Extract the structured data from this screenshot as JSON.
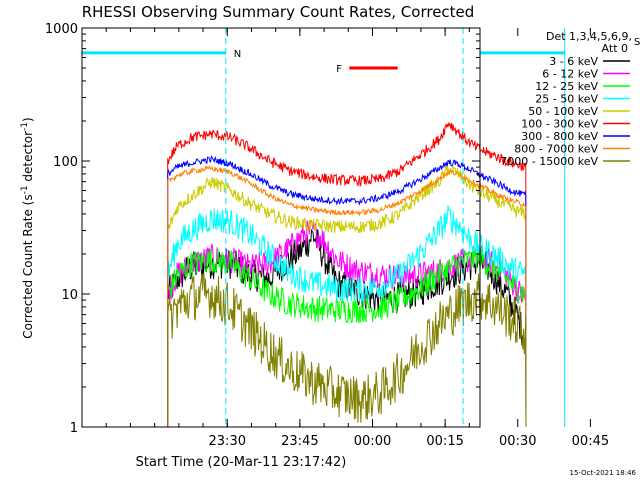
{
  "chart_data": {
    "type": "line",
    "title": "RHESSI Observing Summary Count Rates, Corrected",
    "xlabel": "Start Time (20-Mar-11 23:17:42)",
    "ylabel_parts": {
      "pre": "Corrected Count Rate (s",
      "sup1": "-1",
      "mid": " detector",
      "sup2": "-1",
      "post": ")"
    },
    "yscale": "log",
    "ylim": [
      1,
      1000
    ],
    "xlim_min": [
      -17.7,
      64.5
    ],
    "yticks": [
      {
        "value": 1,
        "label": "1"
      },
      {
        "value": 10,
        "label": "10"
      },
      {
        "value": 100,
        "label": "100"
      },
      {
        "value": 1000,
        "label": "1000"
      }
    ],
    "xticks": [
      {
        "t": 12.3,
        "label": "23:30"
      },
      {
        "t": 27.3,
        "label": "23:45"
      },
      {
        "t": 42.3,
        "label": "00:00"
      },
      {
        "t": 57.3,
        "label": "00:15"
      },
      {
        "t": 72.3,
        "label": "00:30"
      },
      {
        "t": 87.3,
        "label": "00:45"
      }
    ],
    "legend_header": [
      "Det 1,3,4,5,6,9,",
      "Att 0"
    ],
    "series": [
      {
        "name": "3 - 6 keV",
        "color": "#000000",
        "noise": 0.12,
        "points": [
          [
            0,
            10
          ],
          [
            2,
            13
          ],
          [
            5,
            16
          ],
          [
            9,
            17
          ],
          [
            13,
            17
          ],
          [
            17,
            14
          ],
          [
            21,
            13
          ],
          [
            24,
            17
          ],
          [
            28,
            22
          ],
          [
            30,
            28
          ],
          [
            32,
            20
          ],
          [
            35,
            12
          ],
          [
            39,
            10.5
          ],
          [
            44,
            9
          ],
          [
            48,
            9.5
          ],
          [
            52,
            10.5
          ],
          [
            56,
            12.5
          ],
          [
            60,
            15
          ],
          [
            64,
            17.5
          ],
          [
            66,
            16
          ],
          [
            68,
            13
          ],
          [
            70,
            10
          ],
          [
            72,
            7
          ],
          [
            74,
            4.5
          ]
        ]
      },
      {
        "name": "6 - 12 keV",
        "color": "#ff00ff",
        "noise": 0.1,
        "points": [
          [
            0,
            10
          ],
          [
            2,
            14
          ],
          [
            5,
            17
          ],
          [
            9,
            19
          ],
          [
            13,
            18
          ],
          [
            17,
            16
          ],
          [
            21,
            17
          ],
          [
            25,
            22
          ],
          [
            28,
            28
          ],
          [
            30,
            30
          ],
          [
            32,
            26
          ],
          [
            35,
            18
          ],
          [
            39,
            15
          ],
          [
            44,
            14
          ],
          [
            48,
            13.5
          ],
          [
            52,
            14
          ],
          [
            56,
            15
          ],
          [
            60,
            17
          ],
          [
            64,
            19
          ],
          [
            66,
            18
          ],
          [
            68,
            16
          ],
          [
            70,
            14
          ],
          [
            72,
            11
          ],
          [
            74,
            9
          ]
        ]
      },
      {
        "name": "12 - 25 keV",
        "color": "#00ff00",
        "noise": 0.1,
        "points": [
          [
            0,
            10
          ],
          [
            2,
            14
          ],
          [
            5,
            17
          ],
          [
            9,
            18
          ],
          [
            13,
            17
          ],
          [
            17,
            13
          ],
          [
            21,
            10
          ],
          [
            25,
            8.5
          ],
          [
            30,
            7.8
          ],
          [
            35,
            7.6
          ],
          [
            40,
            7.6
          ],
          [
            44,
            7.8
          ],
          [
            48,
            9
          ],
          [
            52,
            11
          ],
          [
            56,
            14
          ],
          [
            60,
            17
          ],
          [
            64,
            19
          ],
          [
            66,
            17
          ],
          [
            68,
            15
          ],
          [
            70,
            13
          ],
          [
            72,
            11
          ],
          [
            74,
            10
          ]
        ]
      },
      {
        "name": "25 - 50 keV",
        "color": "#00ffff",
        "noise": 0.1,
        "points": [
          [
            0,
            14
          ],
          [
            2,
            24
          ],
          [
            5,
            30
          ],
          [
            9,
            37
          ],
          [
            13,
            35
          ],
          [
            17,
            28
          ],
          [
            21,
            20
          ],
          [
            25,
            14.5
          ],
          [
            30,
            12
          ],
          [
            35,
            11
          ],
          [
            40,
            10.8
          ],
          [
            44,
            11.5
          ],
          [
            48,
            14
          ],
          [
            52,
            20
          ],
          [
            56,
            30
          ],
          [
            58,
            38
          ],
          [
            60,
            33
          ],
          [
            62,
            27
          ],
          [
            64,
            23
          ],
          [
            66,
            21
          ],
          [
            68,
            19
          ],
          [
            70,
            16.5
          ],
          [
            72,
            15
          ],
          [
            74,
            14
          ]
        ]
      },
      {
        "name": "50 - 100 keV",
        "color": "#cccc00",
        "noise": 0.05,
        "points": [
          [
            0,
            30
          ],
          [
            2,
            45
          ],
          [
            5,
            55
          ],
          [
            9,
            70
          ],
          [
            13,
            60
          ],
          [
            17,
            48
          ],
          [
            21,
            40
          ],
          [
            25,
            35
          ],
          [
            30,
            33
          ],
          [
            35,
            32
          ],
          [
            40,
            32
          ],
          [
            44,
            34
          ],
          [
            48,
            40
          ],
          [
            52,
            55
          ],
          [
            56,
            70
          ],
          [
            58,
            88
          ],
          [
            60,
            80
          ],
          [
            62,
            68
          ],
          [
            64,
            60
          ],
          [
            66,
            55
          ],
          [
            68,
            50
          ],
          [
            70,
            46
          ],
          [
            72,
            42
          ],
          [
            74,
            40
          ]
        ]
      },
      {
        "name": "100 - 300 keV",
        "color": "#ff0000",
        "noise": 0.04,
        "points": [
          [
            0,
            100
          ],
          [
            2,
            130
          ],
          [
            5,
            150
          ],
          [
            9,
            160
          ],
          [
            13,
            150
          ],
          [
            17,
            125
          ],
          [
            21,
            100
          ],
          [
            25,
            85
          ],
          [
            30,
            76
          ],
          [
            35,
            72
          ],
          [
            40,
            71
          ],
          [
            44,
            73
          ],
          [
            48,
            85
          ],
          [
            52,
            110
          ],
          [
            56,
            145
          ],
          [
            58,
            195
          ],
          [
            60,
            165
          ],
          [
            62,
            140
          ],
          [
            64,
            125
          ],
          [
            66,
            115
          ],
          [
            68,
            108
          ],
          [
            70,
            100
          ],
          [
            72,
            95
          ],
          [
            74,
            90
          ]
        ]
      },
      {
        "name": "300 - 800 keV",
        "color": "#0000ff",
        "noise": 0.025,
        "points": [
          [
            0,
            80
          ],
          [
            2,
            90
          ],
          [
            5,
            97
          ],
          [
            9,
            103
          ],
          [
            13,
            95
          ],
          [
            17,
            80
          ],
          [
            21,
            66
          ],
          [
            25,
            57
          ],
          [
            30,
            52
          ],
          [
            35,
            50
          ],
          [
            40,
            50
          ],
          [
            44,
            53
          ],
          [
            48,
            60
          ],
          [
            52,
            72
          ],
          [
            56,
            88
          ],
          [
            58,
            98
          ],
          [
            60,
            95
          ],
          [
            62,
            88
          ],
          [
            64,
            80
          ],
          [
            66,
            74
          ],
          [
            68,
            68
          ],
          [
            70,
            62
          ],
          [
            72,
            58
          ],
          [
            74,
            55
          ]
        ]
      },
      {
        "name": "800 - 7000 keV",
        "color": "#ff8000",
        "noise": 0.02,
        "points": [
          [
            0,
            70
          ],
          [
            2,
            78
          ],
          [
            5,
            84
          ],
          [
            9,
            88
          ],
          [
            13,
            82
          ],
          [
            17,
            68
          ],
          [
            21,
            55
          ],
          [
            25,
            47
          ],
          [
            30,
            43
          ],
          [
            35,
            41
          ],
          [
            40,
            41
          ],
          [
            44,
            43
          ],
          [
            48,
            49
          ],
          [
            52,
            59
          ],
          [
            56,
            73
          ],
          [
            58,
            83
          ],
          [
            60,
            80
          ],
          [
            62,
            73
          ],
          [
            64,
            66
          ],
          [
            66,
            61
          ],
          [
            68,
            56
          ],
          [
            70,
            52
          ],
          [
            72,
            49
          ],
          [
            74,
            47
          ]
        ]
      },
      {
        "name": "7000 - 15000 keV",
        "color": "#808000",
        "noise": 0.18,
        "points": [
          [
            0,
            6
          ],
          [
            2,
            8
          ],
          [
            5,
            9.5
          ],
          [
            9,
            10
          ],
          [
            13,
            8
          ],
          [
            17,
            5.5
          ],
          [
            21,
            3.8
          ],
          [
            25,
            2.8
          ],
          [
            30,
            2.2
          ],
          [
            35,
            1.8
          ],
          [
            40,
            1.6
          ],
          [
            44,
            1.8
          ],
          [
            48,
            2.5
          ],
          [
            52,
            4
          ],
          [
            56,
            6
          ],
          [
            60,
            8
          ],
          [
            64,
            9.7
          ],
          [
            66,
            9
          ],
          [
            68,
            8
          ],
          [
            70,
            7
          ],
          [
            72,
            6
          ],
          [
            74,
            5
          ]
        ]
      }
    ],
    "series_range_min": [
      0,
      74
    ],
    "annotations": {
      "night_label": "N",
      "saa_label": "S",
      "flare_label": "F",
      "night_color": "#00e5ff",
      "saa_color": "#ff8000",
      "flare_color": "#ff0000",
      "night_start_min": 12.0,
      "night_end_min": 82.0,
      "saa_start_min": 99.0,
      "saa_end_min": 103.0,
      "flare_start_min": 37.5,
      "flare_end_min": 47.5
    },
    "timestamp": "15-Oct-2021 18:46"
  }
}
